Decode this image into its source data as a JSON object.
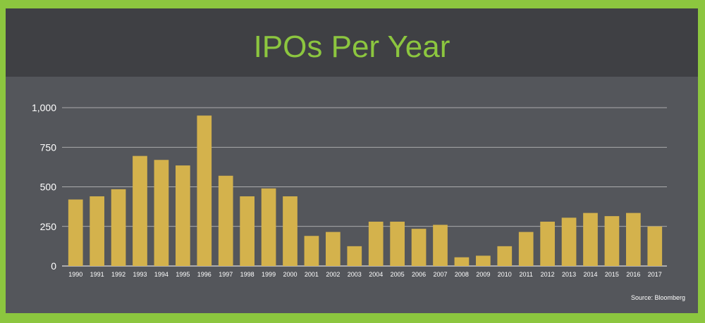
{
  "title": "IPOs Per Year",
  "source": "Source: Bloomberg",
  "colors": {
    "background_border": "#8cc63f",
    "panel": "#54565b",
    "header": "#3f4044",
    "bar": "#d4b24c",
    "title": "#8cc63f",
    "gridline": "#c8c8c8"
  },
  "chart_data": {
    "type": "bar",
    "title": "IPOs Per Year",
    "xlabel": "",
    "ylabel": "",
    "ylim": [
      0,
      1000
    ],
    "yticks": [
      "0",
      "250",
      "500",
      "750",
      "1,000"
    ],
    "grid": true,
    "categories": [
      "1990",
      "1991",
      "1992",
      "1993",
      "1994",
      "1995",
      "1996",
      "1997",
      "1998",
      "1999",
      "2000",
      "2001",
      "2002",
      "2003",
      "2004",
      "2005",
      "2006",
      "2007",
      "2008",
      "2009",
      "2010",
      "2011",
      "2012",
      "2013",
      "2014",
      "2015",
      "2016",
      "2017"
    ],
    "values": [
      420,
      440,
      485,
      695,
      670,
      635,
      950,
      570,
      440,
      490,
      440,
      190,
      215,
      125,
      280,
      280,
      235,
      260,
      55,
      65,
      125,
      215,
      280,
      305,
      335,
      315,
      335,
      250
    ]
  }
}
